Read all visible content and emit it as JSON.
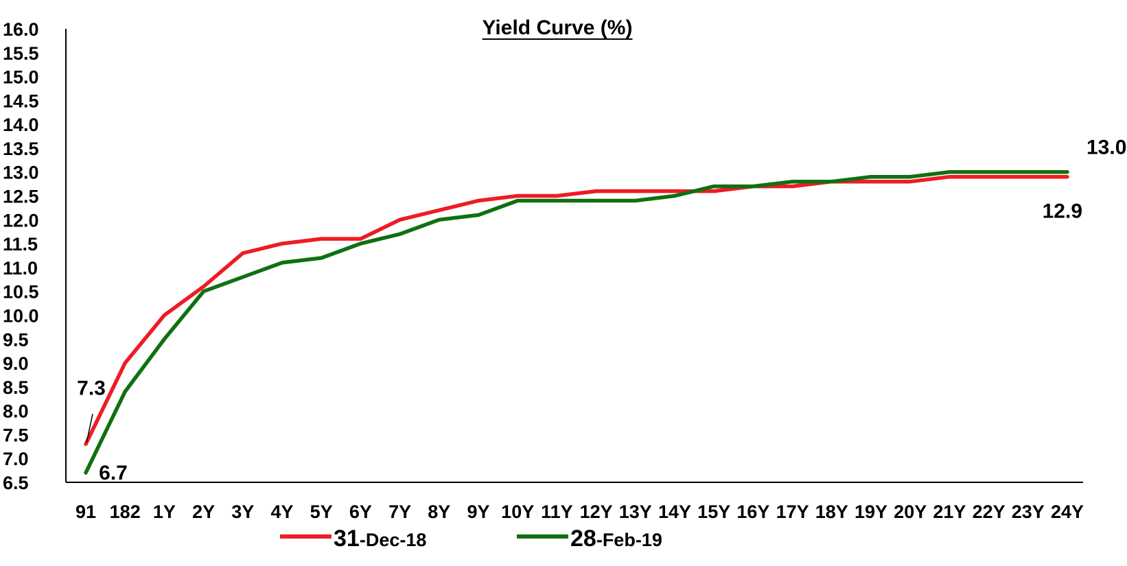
{
  "chart_data": {
    "type": "line",
    "title": "Yield Curve (%)",
    "xlabel": "",
    "ylabel": "",
    "ylim": [
      6.5,
      16.0
    ],
    "ytick_step": 0.5,
    "grid": false,
    "legend_position": "bottom",
    "categories": [
      "91",
      "182",
      "1Y",
      "2Y",
      "3Y",
      "4Y",
      "5Y",
      "6Y",
      "7Y",
      "8Y",
      "9Y",
      "10Y",
      "11Y",
      "12Y",
      "13Y",
      "14Y",
      "15Y",
      "16Y",
      "17Y",
      "18Y",
      "19Y",
      "20Y",
      "21Y",
      "22Y",
      "23Y",
      "24Y"
    ],
    "series": [
      {
        "name": "31-Dec-18",
        "legend_main": "31",
        "legend_suffix": "-Dec-18",
        "color": "#ee1c25",
        "values": [
          7.3,
          9.0,
          10.0,
          10.6,
          11.3,
          11.5,
          11.6,
          11.6,
          12.0,
          12.2,
          12.4,
          12.5,
          12.5,
          12.6,
          12.6,
          12.6,
          12.6,
          12.7,
          12.7,
          12.8,
          12.8,
          12.8,
          12.9,
          12.9,
          12.9,
          12.9
        ]
      },
      {
        "name": "28-Feb-19",
        "legend_main": "28",
        "legend_suffix": "-Feb-19",
        "color": "#107010",
        "values": [
          6.7,
          8.4,
          9.5,
          10.5,
          10.8,
          11.1,
          11.2,
          11.5,
          11.7,
          12.0,
          12.1,
          12.4,
          12.4,
          12.4,
          12.4,
          12.5,
          12.7,
          12.7,
          12.8,
          12.8,
          12.9,
          12.9,
          13.0,
          13.0,
          13.0,
          13.0
        ]
      }
    ],
    "data_labels": [
      {
        "text": "7.3",
        "series": 0,
        "index": 0
      },
      {
        "text": "6.7",
        "series": 1,
        "index": 0
      },
      {
        "text": "13.0",
        "series": 1,
        "index": 25
      },
      {
        "text": "12.9",
        "series": 0,
        "index": 25
      }
    ]
  }
}
